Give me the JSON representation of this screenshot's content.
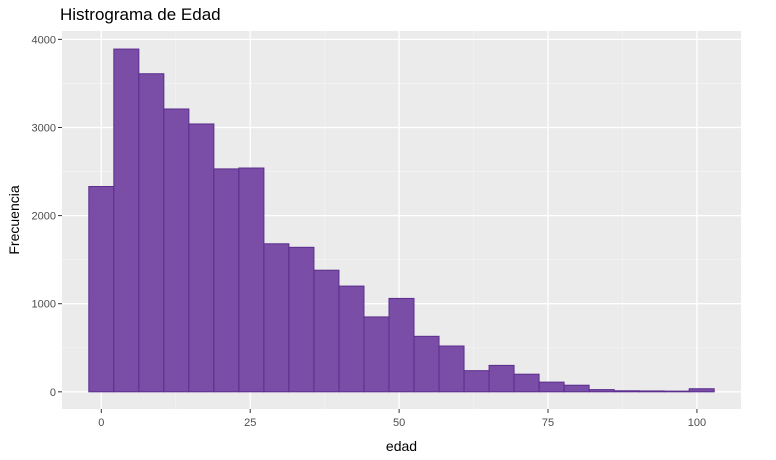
{
  "chart_data": {
    "type": "bar",
    "title": "Histrograma de Edad",
    "xlabel": "edad",
    "ylabel": "Frecuencia",
    "bin_width": 4.2,
    "bins": [
      {
        "x_start": -2.1,
        "x_end": 2.1,
        "count": 2330
      },
      {
        "x_start": 2.1,
        "x_end": 6.3,
        "count": 3890
      },
      {
        "x_start": 6.3,
        "x_end": 10.5,
        "count": 3610
      },
      {
        "x_start": 10.5,
        "x_end": 14.7,
        "count": 3210
      },
      {
        "x_start": 14.7,
        "x_end": 18.9,
        "count": 3040
      },
      {
        "x_start": 18.9,
        "x_end": 23.1,
        "count": 2530
      },
      {
        "x_start": 23.1,
        "x_end": 27.3,
        "count": 2540
      },
      {
        "x_start": 27.3,
        "x_end": 31.5,
        "count": 1680
      },
      {
        "x_start": 31.5,
        "x_end": 35.7,
        "count": 1640
      },
      {
        "x_start": 35.7,
        "x_end": 39.9,
        "count": 1380
      },
      {
        "x_start": 39.9,
        "x_end": 44.1,
        "count": 1200
      },
      {
        "x_start": 44.1,
        "x_end": 48.3,
        "count": 850
      },
      {
        "x_start": 48.3,
        "x_end": 52.5,
        "count": 1060
      },
      {
        "x_start": 52.5,
        "x_end": 56.7,
        "count": 630
      },
      {
        "x_start": 56.7,
        "x_end": 60.9,
        "count": 520
      },
      {
        "x_start": 60.9,
        "x_end": 65.1,
        "count": 240
      },
      {
        "x_start": 65.1,
        "x_end": 69.3,
        "count": 300
      },
      {
        "x_start": 69.3,
        "x_end": 73.5,
        "count": 200
      },
      {
        "x_start": 73.5,
        "x_end": 77.7,
        "count": 110
      },
      {
        "x_start": 77.7,
        "x_end": 81.9,
        "count": 75
      },
      {
        "x_start": 81.9,
        "x_end": 86.1,
        "count": 25
      },
      {
        "x_start": 86.1,
        "x_end": 90.3,
        "count": 12
      },
      {
        "x_start": 90.3,
        "x_end": 94.5,
        "count": 10
      },
      {
        "x_start": 94.5,
        "x_end": 98.7,
        "count": 8
      },
      {
        "x_start": 98.7,
        "x_end": 102.9,
        "count": 35
      }
    ],
    "xlim": [
      -6.6,
      107.4
    ],
    "ylim": [
      -195,
      4095
    ],
    "x_ticks": [
      0,
      25,
      50,
      75,
      100
    ],
    "y_ticks": [
      0,
      1000,
      2000,
      3000,
      4000
    ],
    "x_tick_labels": [
      "0",
      "25",
      "50",
      "75",
      "100"
    ],
    "y_tick_labels": [
      "0",
      "1000",
      "2000",
      "3000",
      "4000"
    ],
    "grid": true,
    "legend": "none",
    "colors": {
      "bar_fill": "#7a4ea6",
      "bar_outline": "#5b2d8e",
      "panel_background": "#ebebeb",
      "grid_major": "#ffffff",
      "grid_minor": "#f3f3f3"
    }
  }
}
